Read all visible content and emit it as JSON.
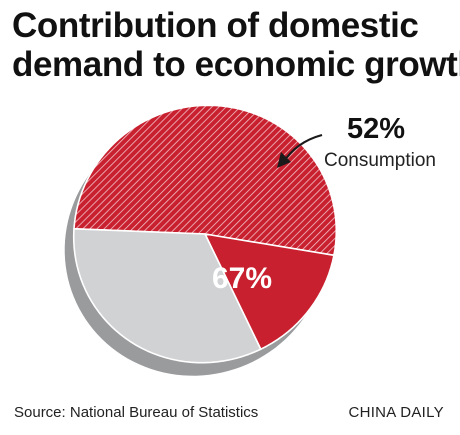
{
  "title_lines": [
    "Contribution of domestic",
    "demand to economic growth"
  ],
  "chart_data": {
    "type": "pie",
    "title": "Contribution of domestic demand to economic growth",
    "style": "3d-tilted",
    "slices": [
      {
        "name": "Consumption",
        "value": 52,
        "fill": "hatched",
        "color": "#c8202f"
      },
      {
        "name": "",
        "value": 15,
        "fill": "solid",
        "color": "#c8202f"
      },
      {
        "name": "",
        "value": 33,
        "fill": "solid",
        "color": "#d1d2d4"
      }
    ],
    "labels": {
      "total": "67%",
      "consumption_value": "52%",
      "consumption_name": "Consumption"
    }
  },
  "footer": {
    "source": "Source: National Bureau of Statistics",
    "credit": "CHINA DAILY"
  },
  "colors": {
    "red": "#c8202f",
    "gray": "#d1d2d4",
    "shadow": "#9a9b9d"
  }
}
